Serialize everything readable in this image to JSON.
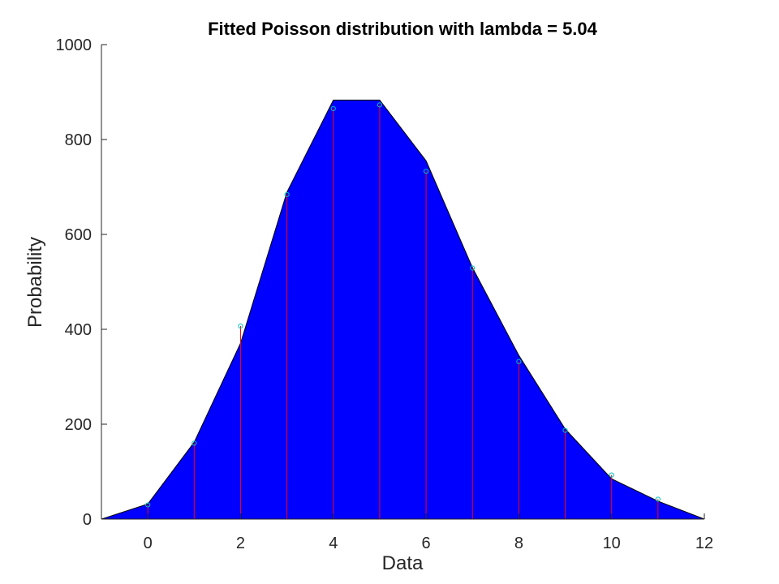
{
  "chart_data": {
    "type": "area",
    "title": "Fitted Poisson distribution with lambda = 5.04",
    "xlabel": "Data",
    "ylabel": "Probability",
    "xlim": [
      -1,
      12
    ],
    "ylim": [
      0,
      1000
    ],
    "xticks": [
      0,
      2,
      4,
      6,
      8,
      10,
      12
    ],
    "yticks": [
      0,
      200,
      400,
      600,
      800,
      1000
    ],
    "grid": false,
    "legend": "none",
    "series": [
      {
        "kind": "area",
        "color": "#0000ff",
        "x": [
          -1,
          0,
          1,
          2,
          3,
          4,
          5,
          6,
          7,
          8,
          9,
          10,
          11,
          12
        ],
        "y": [
          0,
          32,
          162,
          371,
          689,
          883,
          883,
          755,
          530,
          345,
          190,
          85,
          38,
          0
        ]
      },
      {
        "kind": "stem",
        "color": "#ff0000",
        "marker_color": "#00bfbf",
        "x": [
          0,
          1,
          2,
          3,
          4,
          5,
          6,
          7,
          8,
          9,
          10,
          11
        ],
        "y": [
          30,
          160,
          407,
          684,
          865,
          873,
          733,
          529,
          332,
          187,
          93,
          42
        ]
      }
    ]
  }
}
